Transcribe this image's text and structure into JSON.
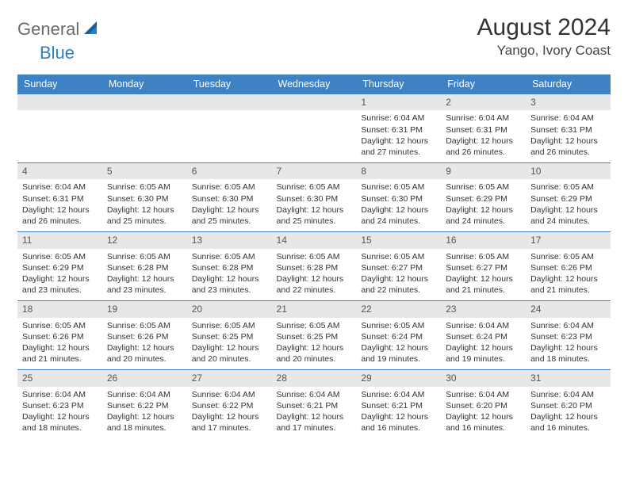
{
  "brand": {
    "word1": "General",
    "word2": "Blue",
    "text_color": "#6a6a6a",
    "accent_color": "#2a7fc9",
    "font_size": 22
  },
  "title": {
    "month": "August 2024",
    "location": "Yango, Ivory Coast",
    "month_fontsize": 30,
    "location_fontsize": 17,
    "month_color": "#333333",
    "location_color": "#444444"
  },
  "calendar": {
    "header_bg": "#3f82c4",
    "header_text_color": "#ffffff",
    "header_fontsize": 12.5,
    "daynum_bg": "#e7e7e7",
    "daynum_color": "#555555",
    "daynum_fontsize": 12,
    "cell_fontsize": 10.5,
    "cell_text_color": "#333333",
    "row_border_color": "#3f82c4",
    "day_names": [
      "Sunday",
      "Monday",
      "Tuesday",
      "Wednesday",
      "Thursday",
      "Friday",
      "Saturday"
    ],
    "weeks": [
      [
        {
          "day": "",
          "lines": []
        },
        {
          "day": "",
          "lines": []
        },
        {
          "day": "",
          "lines": []
        },
        {
          "day": "",
          "lines": []
        },
        {
          "day": "1",
          "lines": [
            "Sunrise: 6:04 AM",
            "Sunset: 6:31 PM",
            "Daylight: 12 hours",
            "and 27 minutes."
          ]
        },
        {
          "day": "2",
          "lines": [
            "Sunrise: 6:04 AM",
            "Sunset: 6:31 PM",
            "Daylight: 12 hours",
            "and 26 minutes."
          ]
        },
        {
          "day": "3",
          "lines": [
            "Sunrise: 6:04 AM",
            "Sunset: 6:31 PM",
            "Daylight: 12 hours",
            "and 26 minutes."
          ]
        }
      ],
      [
        {
          "day": "4",
          "lines": [
            "Sunrise: 6:04 AM",
            "Sunset: 6:31 PM",
            "Daylight: 12 hours",
            "and 26 minutes."
          ]
        },
        {
          "day": "5",
          "lines": [
            "Sunrise: 6:05 AM",
            "Sunset: 6:30 PM",
            "Daylight: 12 hours",
            "and 25 minutes."
          ]
        },
        {
          "day": "6",
          "lines": [
            "Sunrise: 6:05 AM",
            "Sunset: 6:30 PM",
            "Daylight: 12 hours",
            "and 25 minutes."
          ]
        },
        {
          "day": "7",
          "lines": [
            "Sunrise: 6:05 AM",
            "Sunset: 6:30 PM",
            "Daylight: 12 hours",
            "and 25 minutes."
          ]
        },
        {
          "day": "8",
          "lines": [
            "Sunrise: 6:05 AM",
            "Sunset: 6:30 PM",
            "Daylight: 12 hours",
            "and 24 minutes."
          ]
        },
        {
          "day": "9",
          "lines": [
            "Sunrise: 6:05 AM",
            "Sunset: 6:29 PM",
            "Daylight: 12 hours",
            "and 24 minutes."
          ]
        },
        {
          "day": "10",
          "lines": [
            "Sunrise: 6:05 AM",
            "Sunset: 6:29 PM",
            "Daylight: 12 hours",
            "and 24 minutes."
          ]
        }
      ],
      [
        {
          "day": "11",
          "lines": [
            "Sunrise: 6:05 AM",
            "Sunset: 6:29 PM",
            "Daylight: 12 hours",
            "and 23 minutes."
          ]
        },
        {
          "day": "12",
          "lines": [
            "Sunrise: 6:05 AM",
            "Sunset: 6:28 PM",
            "Daylight: 12 hours",
            "and 23 minutes."
          ]
        },
        {
          "day": "13",
          "lines": [
            "Sunrise: 6:05 AM",
            "Sunset: 6:28 PM",
            "Daylight: 12 hours",
            "and 23 minutes."
          ]
        },
        {
          "day": "14",
          "lines": [
            "Sunrise: 6:05 AM",
            "Sunset: 6:28 PM",
            "Daylight: 12 hours",
            "and 22 minutes."
          ]
        },
        {
          "day": "15",
          "lines": [
            "Sunrise: 6:05 AM",
            "Sunset: 6:27 PM",
            "Daylight: 12 hours",
            "and 22 minutes."
          ]
        },
        {
          "day": "16",
          "lines": [
            "Sunrise: 6:05 AM",
            "Sunset: 6:27 PM",
            "Daylight: 12 hours",
            "and 21 minutes."
          ]
        },
        {
          "day": "17",
          "lines": [
            "Sunrise: 6:05 AM",
            "Sunset: 6:26 PM",
            "Daylight: 12 hours",
            "and 21 minutes."
          ]
        }
      ],
      [
        {
          "day": "18",
          "lines": [
            "Sunrise: 6:05 AM",
            "Sunset: 6:26 PM",
            "Daylight: 12 hours",
            "and 21 minutes."
          ]
        },
        {
          "day": "19",
          "lines": [
            "Sunrise: 6:05 AM",
            "Sunset: 6:26 PM",
            "Daylight: 12 hours",
            "and 20 minutes."
          ]
        },
        {
          "day": "20",
          "lines": [
            "Sunrise: 6:05 AM",
            "Sunset: 6:25 PM",
            "Daylight: 12 hours",
            "and 20 minutes."
          ]
        },
        {
          "day": "21",
          "lines": [
            "Sunrise: 6:05 AM",
            "Sunset: 6:25 PM",
            "Daylight: 12 hours",
            "and 20 minutes."
          ]
        },
        {
          "day": "22",
          "lines": [
            "Sunrise: 6:05 AM",
            "Sunset: 6:24 PM",
            "Daylight: 12 hours",
            "and 19 minutes."
          ]
        },
        {
          "day": "23",
          "lines": [
            "Sunrise: 6:04 AM",
            "Sunset: 6:24 PM",
            "Daylight: 12 hours",
            "and 19 minutes."
          ]
        },
        {
          "day": "24",
          "lines": [
            "Sunrise: 6:04 AM",
            "Sunset: 6:23 PM",
            "Daylight: 12 hours",
            "and 18 minutes."
          ]
        }
      ],
      [
        {
          "day": "25",
          "lines": [
            "Sunrise: 6:04 AM",
            "Sunset: 6:23 PM",
            "Daylight: 12 hours",
            "and 18 minutes."
          ]
        },
        {
          "day": "26",
          "lines": [
            "Sunrise: 6:04 AM",
            "Sunset: 6:22 PM",
            "Daylight: 12 hours",
            "and 18 minutes."
          ]
        },
        {
          "day": "27",
          "lines": [
            "Sunrise: 6:04 AM",
            "Sunset: 6:22 PM",
            "Daylight: 12 hours",
            "and 17 minutes."
          ]
        },
        {
          "day": "28",
          "lines": [
            "Sunrise: 6:04 AM",
            "Sunset: 6:21 PM",
            "Daylight: 12 hours",
            "and 17 minutes."
          ]
        },
        {
          "day": "29",
          "lines": [
            "Sunrise: 6:04 AM",
            "Sunset: 6:21 PM",
            "Daylight: 12 hours",
            "and 16 minutes."
          ]
        },
        {
          "day": "30",
          "lines": [
            "Sunrise: 6:04 AM",
            "Sunset: 6:20 PM",
            "Daylight: 12 hours",
            "and 16 minutes."
          ]
        },
        {
          "day": "31",
          "lines": [
            "Sunrise: 6:04 AM",
            "Sunset: 6:20 PM",
            "Daylight: 12 hours",
            "and 16 minutes."
          ]
        }
      ]
    ]
  }
}
